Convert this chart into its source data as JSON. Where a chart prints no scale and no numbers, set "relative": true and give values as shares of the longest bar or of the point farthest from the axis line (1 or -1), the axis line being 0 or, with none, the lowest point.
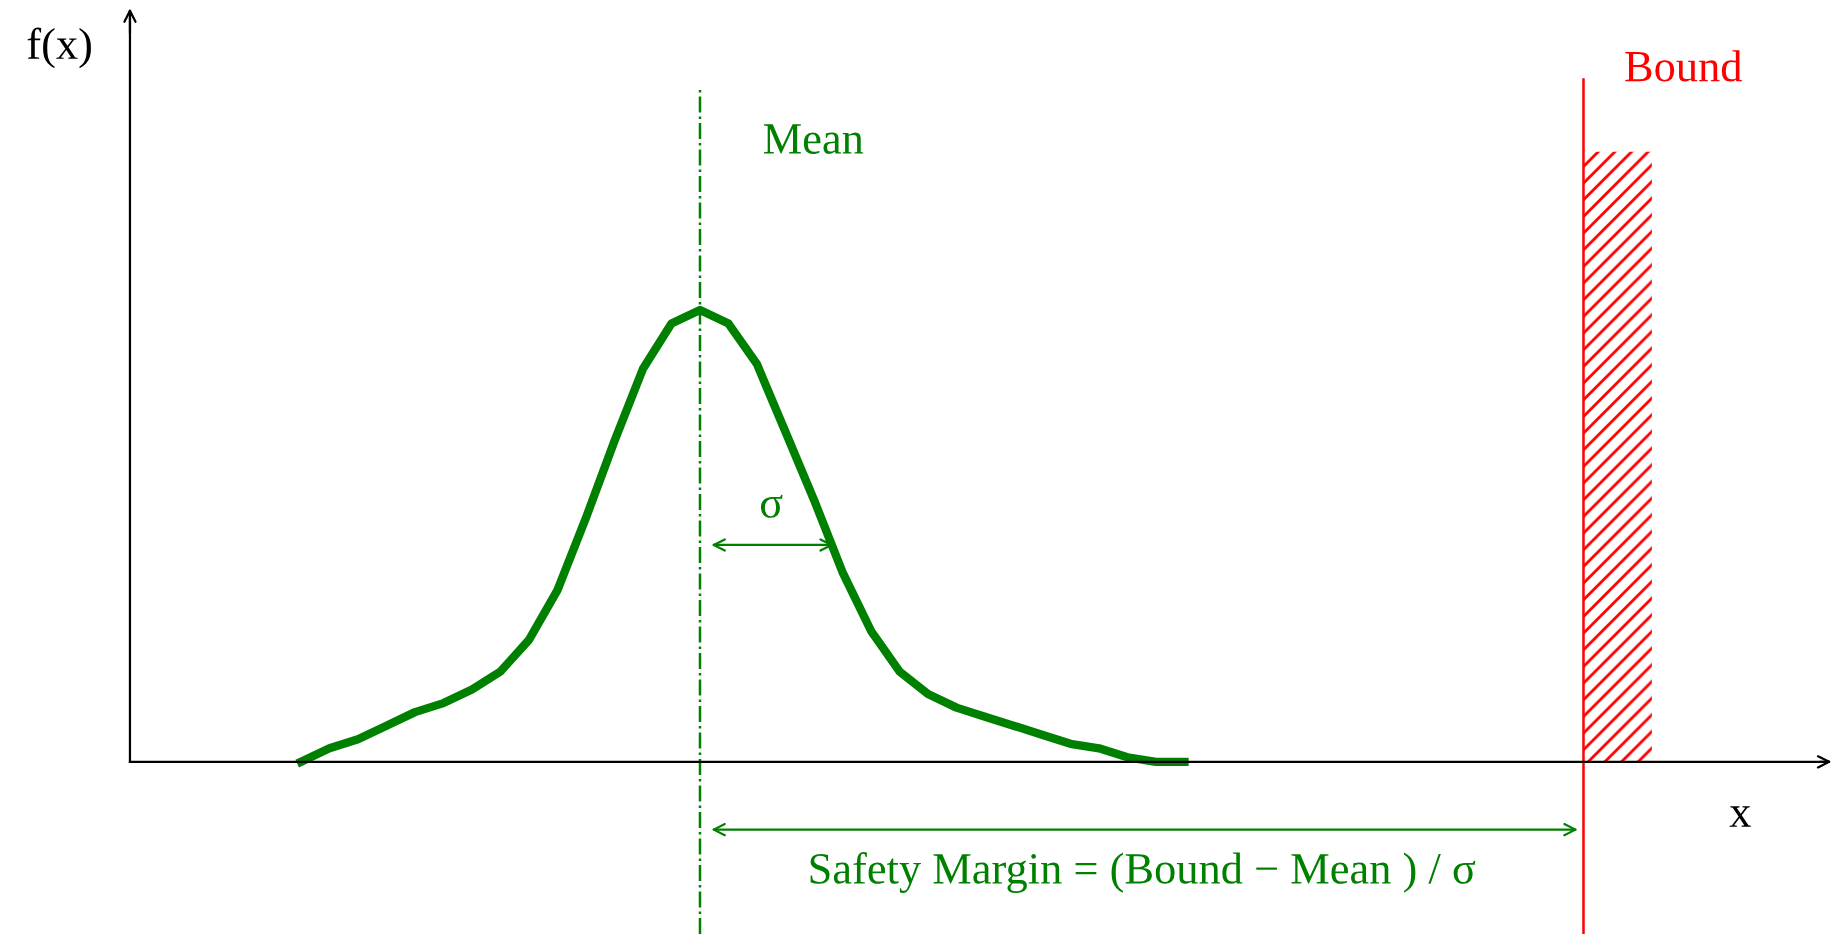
{
  "chart_data": {
    "type": "line",
    "relative": true,
    "xlabel": "x",
    "categories": [
      null,
      null,
      null,
      null,
      null,
      null,
      null,
      null,
      null,
      null,
      null,
      null,
      null,
      null,
      null,
      null,
      null,
      null,
      null,
      null,
      null,
      null,
      null,
      null,
      null,
      null,
      null,
      null,
      null,
      null,
      null,
      null,
      null,
      null,
      null,
      null,
      null,
      null,
      null,
      null,
      null,
      null,
      null,
      null,
      null,
      null,
      null,
      null,
      null,
      null,
      null,
      null,
      null,
      null,
      null,
      null,
      null,
      null,
      null,
      null
    ],
    "series": [
      {
        "color": "#008000",
        "values": [
          null,
          null,
          null,
          null,
          null,
          null,
          0,
          0.03,
          0.05,
          0.08,
          0.11,
          0.13,
          0.16,
          0.2,
          0.27,
          0.38,
          0.54,
          0.71,
          0.87,
          0.97,
          1,
          0.97,
          0.88,
          0.73,
          0.58,
          0.42,
          0.29,
          0.2,
          0.15,
          0.12,
          0.1,
          0.08,
          0.06,
          0.04,
          0.03,
          0.01,
          0,
          0,
          null,
          null,
          null,
          null,
          null,
          null,
          null,
          null,
          null,
          null,
          null,
          null,
          null,
          null,
          null,
          null,
          null,
          null,
          null,
          null,
          null,
          null
        ]
      }
    ],
    "annotations": [
      "f(x)",
      "Mean",
      "Bound",
      "σ",
      "Safety Margin = (Bound − Mean ) / σ"
    ],
    "grid": false,
    "legend": false,
    "marker": "none",
    "line_style": "solid"
  }
}
